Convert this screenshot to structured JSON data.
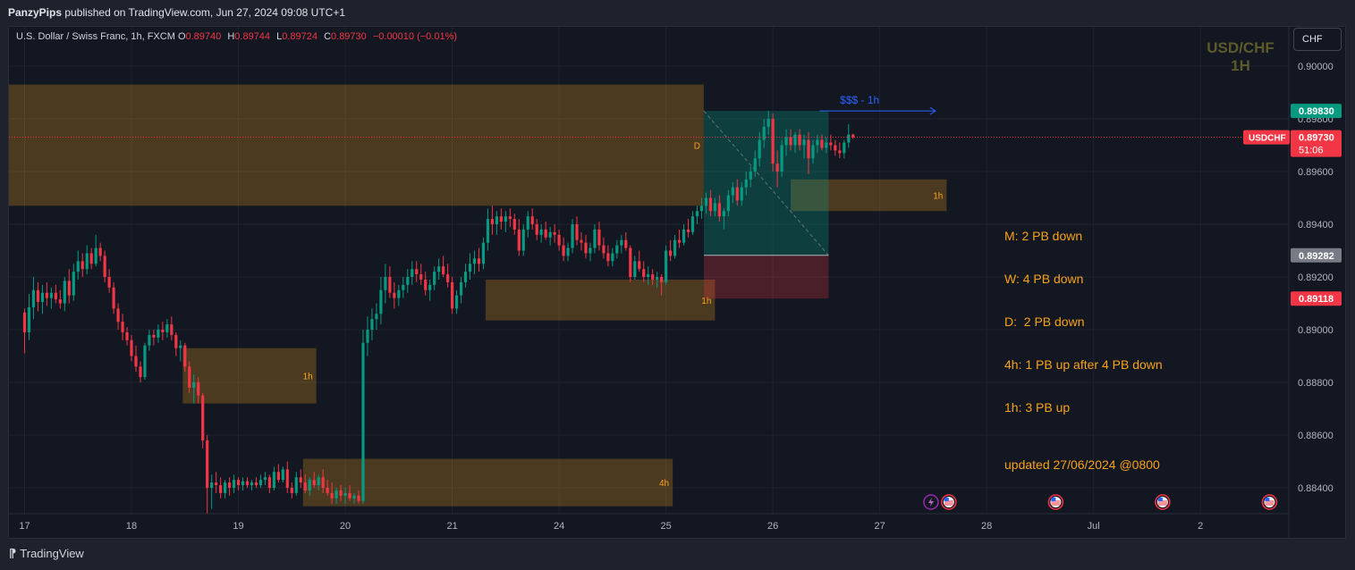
{
  "publisher": {
    "author": "PanzyPips",
    "rest": " published on TradingView.com, Jun 27, 2024 09:08 UTC+1"
  },
  "symbol": {
    "name": "U.S. Dollar / Swiss Franc, 1h, FXCM",
    "open": "0.89740",
    "high": "0.89744",
    "low": "0.89724",
    "close": "0.89730",
    "change": "−0.00010 (−0.01%)"
  },
  "watermark": {
    "line1": "USD/CHF",
    "line2": "1H"
  },
  "currency_button": "CHF",
  "notes": {
    "lines": [
      "M: 2 PB down",
      "W: 4 PB down",
      "D:  2 PB down",
      "4h: 1 PB up after 4 PB down",
      "1h: 3 PB up"
    ],
    "updated": "updated 27/06/2024 @0800"
  },
  "footer": {
    "brand": "TradingView"
  },
  "colors": {
    "up": "#089981",
    "down": "#f23645",
    "zone": "#f7a21b",
    "note": "#f7a21b",
    "target": "#2962ff"
  },
  "chart_data": {
    "type": "candlestick",
    "title": "",
    "ylim": [
      0.8831,
      0.9018
    ],
    "y_ticks": [
      "0.90000",
      "0.89800",
      "0.89600",
      "0.89400",
      "0.89200",
      "0.89000",
      "0.88800",
      "0.88600",
      "0.88400"
    ],
    "x_ticks": [
      "17",
      "18",
      "19",
      "20",
      "21",
      "24",
      "25",
      "26",
      "27",
      "28",
      "Jul",
      "2"
    ],
    "x_tick_index": [
      0,
      24,
      48,
      72,
      96,
      120,
      144,
      168,
      192,
      216,
      240,
      264
    ],
    "grid": true,
    "last_price": {
      "symbol": "USDCHF",
      "value": "0.89730",
      "countdown": "51:06"
    },
    "markers": [
      {
        "label": "0.89830",
        "value": 0.8983,
        "color": "#089981"
      },
      {
        "label": "0.89282",
        "value": 0.89282,
        "color": "#787b86"
      },
      {
        "label": "0.89118",
        "value": 0.89118,
        "color": "#f23645"
      }
    ],
    "zones": [
      {
        "label": "D",
        "t0": -4,
        "t1": 152.5,
        "top": 0.8993,
        "bottom": 0.8947
      },
      {
        "label": "1h",
        "t0": 172,
        "t1": 207,
        "top": 0.8957,
        "bottom": 0.8945
      },
      {
        "label": "1h",
        "t0": 103.5,
        "t1": 155,
        "top": 0.8919,
        "bottom": 0.89035
      },
      {
        "label": "1h",
        "t0": 35.5,
        "t1": 65.5,
        "top": 0.8893,
        "bottom": 0.8872
      },
      {
        "label": "4h",
        "t0": 62.5,
        "t1": 145.5,
        "top": 0.8851,
        "bottom": 0.8833
      }
    ],
    "position": {
      "t0": 152.5,
      "t1": 180.5,
      "entry": 0.89282,
      "target": 0.8983,
      "stop": 0.89118
    },
    "target_label": {
      "text": "$$$ - 1h",
      "t0": 178.5,
      "t1": 204.5,
      "value": 0.8983
    },
    "event_markers": [
      {
        "icon": "lightning",
        "t": 203.5
      },
      {
        "icon": "flag",
        "t": 207.5
      },
      {
        "icon": "flag",
        "t": 231.5
      },
      {
        "icon": "flag",
        "t": 255.5
      },
      {
        "icon": "flag",
        "t": 279.5
      }
    ],
    "candles": [
      [
        0.89065,
        0.8908,
        0.8891,
        0.8899
      ],
      [
        0.8899,
        0.89135,
        0.8896,
        0.89085
      ],
      [
        0.89085,
        0.892,
        0.8904,
        0.8915
      ],
      [
        0.8915,
        0.8918,
        0.8907,
        0.89105
      ],
      [
        0.89105,
        0.8917,
        0.8906,
        0.8914
      ],
      [
        0.8914,
        0.8918,
        0.8909,
        0.8912
      ],
      [
        0.8912,
        0.8916,
        0.8908,
        0.8914
      ],
      [
        0.8914,
        0.8917,
        0.891,
        0.89115
      ],
      [
        0.89115,
        0.8915,
        0.8908,
        0.891
      ],
      [
        0.891,
        0.892,
        0.8907,
        0.89185
      ],
      [
        0.89185,
        0.8923,
        0.891,
        0.8913
      ],
      [
        0.8913,
        0.8925,
        0.8911,
        0.8922
      ],
      [
        0.8922,
        0.893,
        0.8919,
        0.8926
      ],
      [
        0.8926,
        0.8929,
        0.892,
        0.8923
      ],
      [
        0.8923,
        0.8932,
        0.8921,
        0.8929
      ],
      [
        0.8929,
        0.8931,
        0.8923,
        0.8925
      ],
      [
        0.8925,
        0.8936,
        0.8924,
        0.8931
      ],
      [
        0.8931,
        0.8933,
        0.8926,
        0.8928
      ],
      [
        0.8928,
        0.893,
        0.8918,
        0.892
      ],
      [
        0.892,
        0.8923,
        0.8914,
        0.8916
      ],
      [
        0.8916,
        0.8918,
        0.8906,
        0.8908
      ],
      [
        0.8908,
        0.891,
        0.89,
        0.8903
      ],
      [
        0.8903,
        0.8906,
        0.8896,
        0.8899
      ],
      [
        0.8899,
        0.8901,
        0.8894,
        0.8896
      ],
      [
        0.8896,
        0.8898,
        0.8888,
        0.889
      ],
      [
        0.889,
        0.8894,
        0.8884,
        0.8886
      ],
      [
        0.8886,
        0.8888,
        0.888,
        0.8882
      ],
      [
        0.8882,
        0.8895,
        0.8881,
        0.8894
      ],
      [
        0.8894,
        0.89,
        0.8892,
        0.8898
      ],
      [
        0.8898,
        0.89,
        0.8894,
        0.8897
      ],
      [
        0.8897,
        0.8902,
        0.8895,
        0.89
      ],
      [
        0.89,
        0.8903,
        0.8896,
        0.8899
      ],
      [
        0.8899,
        0.8904,
        0.8897,
        0.8902
      ],
      [
        0.8902,
        0.8905,
        0.8896,
        0.8898
      ],
      [
        0.8898,
        0.8899,
        0.889,
        0.8893
      ],
      [
        0.8893,
        0.8896,
        0.8888,
        0.8894
      ],
      [
        0.8894,
        0.8895,
        0.8884,
        0.8886
      ],
      [
        0.8886,
        0.8888,
        0.8876,
        0.8878
      ],
      [
        0.8878,
        0.8883,
        0.8872,
        0.888
      ],
      [
        0.888,
        0.8882,
        0.8872,
        0.8875
      ],
      [
        0.8875,
        0.8876,
        0.8855,
        0.8858
      ],
      [
        0.8858,
        0.886,
        0.883,
        0.884
      ],
      [
        0.884,
        0.8845,
        0.8832,
        0.8842
      ],
      [
        0.8842,
        0.8846,
        0.8838,
        0.8841
      ],
      [
        0.8841,
        0.8844,
        0.8836,
        0.8838
      ],
      [
        0.8838,
        0.8843,
        0.8836,
        0.8842
      ],
      [
        0.8842,
        0.8844,
        0.8837,
        0.884
      ],
      [
        0.884,
        0.8845,
        0.8838,
        0.8843
      ],
      [
        0.8843,
        0.8844,
        0.8839,
        0.8841
      ],
      [
        0.8841,
        0.8844,
        0.8839,
        0.88425
      ],
      [
        0.88425,
        0.8844,
        0.884,
        0.8841
      ],
      [
        0.8841,
        0.8843,
        0.8839,
        0.8842
      ],
      [
        0.8842,
        0.8844,
        0.884,
        0.8841
      ],
      [
        0.8841,
        0.8845,
        0.884,
        0.8843
      ],
      [
        0.8843,
        0.8846,
        0.8841,
        0.8844
      ],
      [
        0.8844,
        0.8845,
        0.8838,
        0.884
      ],
      [
        0.884,
        0.8848,
        0.8839,
        0.8846
      ],
      [
        0.8846,
        0.8849,
        0.8842,
        0.8843
      ],
      [
        0.8843,
        0.8848,
        0.8842,
        0.8847
      ],
      [
        0.8847,
        0.885,
        0.8838,
        0.884
      ],
      [
        0.884,
        0.8842,
        0.8836,
        0.8838
      ],
      [
        0.8838,
        0.8846,
        0.8837,
        0.8844
      ],
      [
        0.8844,
        0.8847,
        0.884,
        0.8842
      ],
      [
        0.8842,
        0.8845,
        0.8838,
        0.8839
      ],
      [
        0.8839,
        0.8844,
        0.8837,
        0.8843
      ],
      [
        0.8843,
        0.8846,
        0.884,
        0.8841
      ],
      [
        0.8841,
        0.8845,
        0.8839,
        0.8844
      ],
      [
        0.8844,
        0.8847,
        0.8838,
        0.884
      ],
      [
        0.884,
        0.8843,
        0.8837,
        0.8838
      ],
      [
        0.8838,
        0.8842,
        0.8834,
        0.8836
      ],
      [
        0.8836,
        0.884,
        0.8834,
        0.8839
      ],
      [
        0.8839,
        0.8841,
        0.8835,
        0.8837
      ],
      [
        0.8837,
        0.884,
        0.8834,
        0.8838
      ],
      [
        0.8838,
        0.8841,
        0.8835,
        0.8836
      ],
      [
        0.8836,
        0.8838,
        0.8834,
        0.8837
      ],
      [
        0.8837,
        0.8839,
        0.8834,
        0.8835
      ],
      [
        0.8835,
        0.89,
        0.8834,
        0.8895
      ],
      [
        0.8895,
        0.8905,
        0.889,
        0.89
      ],
      [
        0.89,
        0.8908,
        0.8896,
        0.8904
      ],
      [
        0.8904,
        0.891,
        0.89,
        0.8906
      ],
      [
        0.8906,
        0.892,
        0.8902,
        0.8915
      ],
      [
        0.8915,
        0.8925,
        0.891,
        0.892
      ],
      [
        0.892,
        0.8924,
        0.8912,
        0.8914
      ],
      [
        0.8914,
        0.8918,
        0.8908,
        0.8912
      ],
      [
        0.8912,
        0.8917,
        0.8909,
        0.8915
      ],
      [
        0.8915,
        0.892,
        0.8912,
        0.8917
      ],
      [
        0.8917,
        0.8923,
        0.8914,
        0.892
      ],
      [
        0.892,
        0.8926,
        0.8917,
        0.8923
      ],
      [
        0.8923,
        0.8926,
        0.8918,
        0.8921
      ],
      [
        0.8921,
        0.8925,
        0.8917,
        0.8919
      ],
      [
        0.8919,
        0.8922,
        0.8913,
        0.8915
      ],
      [
        0.8915,
        0.8919,
        0.8911,
        0.8917
      ],
      [
        0.8917,
        0.8924,
        0.8915,
        0.8922
      ],
      [
        0.8922,
        0.8927,
        0.8919,
        0.8924
      ],
      [
        0.8924,
        0.8928,
        0.892,
        0.8921
      ],
      [
        0.8921,
        0.8925,
        0.8916,
        0.8918
      ],
      [
        0.8918,
        0.892,
        0.8906,
        0.8908
      ],
      [
        0.8908,
        0.8915,
        0.8906,
        0.8913
      ],
      [
        0.8913,
        0.892,
        0.891,
        0.8918
      ],
      [
        0.8918,
        0.8925,
        0.8916,
        0.8922
      ],
      [
        0.8922,
        0.8929,
        0.8919,
        0.8925
      ],
      [
        0.8925,
        0.893,
        0.8921,
        0.8927
      ],
      [
        0.8927,
        0.8931,
        0.8922,
        0.8925
      ],
      [
        0.8925,
        0.8935,
        0.8923,
        0.8933
      ],
      [
        0.8933,
        0.8946,
        0.893,
        0.8942
      ],
      [
        0.8942,
        0.8947,
        0.8936,
        0.894
      ],
      [
        0.894,
        0.8945,
        0.8936,
        0.8943
      ],
      [
        0.8943,
        0.8946,
        0.8938,
        0.8941
      ],
      [
        0.8941,
        0.8945,
        0.8937,
        0.8943
      ],
      [
        0.8943,
        0.8946,
        0.8939,
        0.8942
      ],
      [
        0.8942,
        0.8944,
        0.8936,
        0.8938
      ],
      [
        0.8938,
        0.8942,
        0.8928,
        0.893
      ],
      [
        0.893,
        0.894,
        0.8928,
        0.8938
      ],
      [
        0.8938,
        0.8945,
        0.8935,
        0.8943
      ],
      [
        0.8943,
        0.8946,
        0.8938,
        0.894
      ],
      [
        0.894,
        0.8942,
        0.8934,
        0.8936
      ],
      [
        0.8936,
        0.894,
        0.8933,
        0.8938
      ],
      [
        0.8938,
        0.8941,
        0.8934,
        0.8935
      ],
      [
        0.8935,
        0.8939,
        0.8932,
        0.8937
      ],
      [
        0.8937,
        0.894,
        0.8933,
        0.8936
      ],
      [
        0.8936,
        0.8938,
        0.893,
        0.8932
      ],
      [
        0.8932,
        0.8935,
        0.8926,
        0.8928
      ],
      [
        0.8928,
        0.8933,
        0.8926,
        0.8931
      ],
      [
        0.8931,
        0.8942,
        0.8929,
        0.894
      ],
      [
        0.894,
        0.8943,
        0.8932,
        0.8934
      ],
      [
        0.8934,
        0.8937,
        0.893,
        0.8933
      ],
      [
        0.8933,
        0.8936,
        0.8927,
        0.8929
      ],
      [
        0.8929,
        0.8933,
        0.8926,
        0.8931
      ],
      [
        0.8931,
        0.894,
        0.8929,
        0.8938
      ],
      [
        0.8938,
        0.8941,
        0.893,
        0.8932
      ],
      [
        0.8932,
        0.8935,
        0.8927,
        0.8929
      ],
      [
        0.8929,
        0.8932,
        0.8924,
        0.8926
      ],
      [
        0.8926,
        0.8931,
        0.8924,
        0.8929
      ],
      [
        0.8929,
        0.8934,
        0.8927,
        0.8932
      ],
      [
        0.8932,
        0.8936,
        0.8929,
        0.8934
      ],
      [
        0.8934,
        0.8937,
        0.893,
        0.8931
      ],
      [
        0.8931,
        0.8932,
        0.8918,
        0.892
      ],
      [
        0.892,
        0.8928,
        0.8919,
        0.8926
      ],
      [
        0.8926,
        0.893,
        0.8922,
        0.8923
      ],
      [
        0.8923,
        0.8926,
        0.8918,
        0.892
      ],
      [
        0.892,
        0.8924,
        0.8917,
        0.8921
      ],
      [
        0.8921,
        0.8923,
        0.8917,
        0.8919
      ],
      [
        0.8919,
        0.8922,
        0.8916,
        0.892
      ],
      [
        0.892,
        0.8921,
        0.8913,
        0.8918
      ],
      [
        0.8918,
        0.8932,
        0.8917,
        0.893
      ],
      [
        0.893,
        0.8934,
        0.8926,
        0.8928
      ],
      [
        0.8928,
        0.8936,
        0.8927,
        0.8934
      ],
      [
        0.8934,
        0.8938,
        0.8931,
        0.8933
      ],
      [
        0.8933,
        0.894,
        0.8932,
        0.8938
      ],
      [
        0.8938,
        0.8942,
        0.8935,
        0.8937
      ],
      [
        0.8937,
        0.8945,
        0.8936,
        0.8943
      ],
      [
        0.8943,
        0.8947,
        0.894,
        0.8945
      ],
      [
        0.8945,
        0.895,
        0.8942,
        0.8947
      ],
      [
        0.8947,
        0.8952,
        0.8944,
        0.895
      ],
      [
        0.895,
        0.8953,
        0.8943,
        0.8945
      ],
      [
        0.8945,
        0.895,
        0.8943,
        0.8948
      ],
      [
        0.8948,
        0.8951,
        0.8941,
        0.8943
      ],
      [
        0.8943,
        0.8946,
        0.8938,
        0.8945
      ],
      [
        0.8945,
        0.8953,
        0.8943,
        0.8951
      ],
      [
        0.8951,
        0.8956,
        0.8948,
        0.8954
      ],
      [
        0.8954,
        0.8957,
        0.8947,
        0.8949
      ],
      [
        0.8949,
        0.8956,
        0.8947,
        0.8954
      ],
      [
        0.8954,
        0.896,
        0.8951,
        0.8957
      ],
      [
        0.8957,
        0.8962,
        0.8954,
        0.896
      ],
      [
        0.896,
        0.8968,
        0.8958,
        0.8965
      ],
      [
        0.8965,
        0.8975,
        0.8962,
        0.8972
      ],
      [
        0.8972,
        0.898,
        0.8969,
        0.8977
      ],
      [
        0.8977,
        0.8983,
        0.8974,
        0.898
      ],
      [
        0.898,
        0.8982,
        0.896,
        0.8963
      ],
      [
        0.8963,
        0.8968,
        0.8954,
        0.896
      ],
      [
        0.896,
        0.8972,
        0.8958,
        0.897
      ],
      [
        0.897,
        0.8976,
        0.8966,
        0.8973
      ],
      [
        0.8973,
        0.8976,
        0.8968,
        0.897
      ],
      [
        0.897,
        0.8975,
        0.8967,
        0.8974
      ],
      [
        0.8974,
        0.8976,
        0.8968,
        0.897
      ],
      [
        0.897,
        0.8974,
        0.8965,
        0.8972
      ],
      [
        0.8972,
        0.8975,
        0.8959,
        0.8965
      ],
      [
        0.8965,
        0.8972,
        0.8963,
        0.897
      ],
      [
        0.897,
        0.8974,
        0.8967,
        0.8972
      ],
      [
        0.8972,
        0.8974,
        0.8968,
        0.8969
      ],
      [
        0.8969,
        0.8973,
        0.8967,
        0.8971
      ],
      [
        0.8971,
        0.8974,
        0.8968,
        0.897
      ],
      [
        0.897,
        0.8972,
        0.8966,
        0.8968
      ],
      [
        0.8968,
        0.8971,
        0.8965,
        0.8967
      ],
      [
        0.8967,
        0.8972,
        0.8965,
        0.8971
      ],
      [
        0.8971,
        0.8978,
        0.8969,
        0.8974
      ],
      [
        0.8974,
        0.89744,
        0.89724,
        0.8973
      ]
    ]
  }
}
